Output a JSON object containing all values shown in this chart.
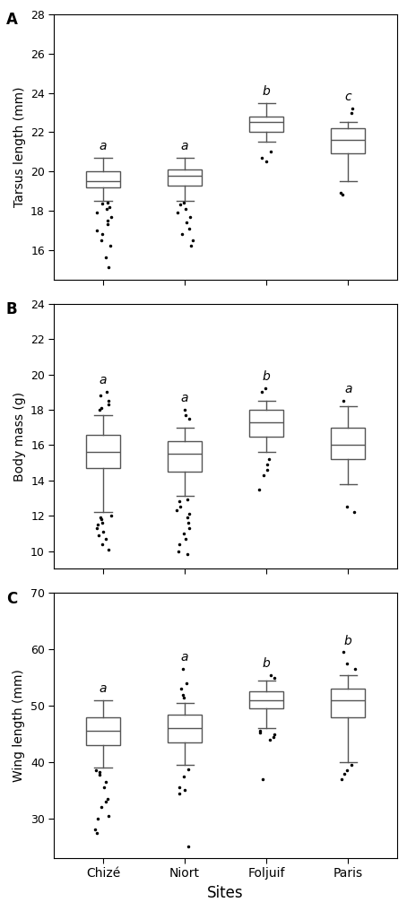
{
  "panel_A": {
    "label": "A",
    "ylabel": "Tarsus length (mm)",
    "ylim": [
      14.5,
      28
    ],
    "yticks": [
      16,
      18,
      20,
      22,
      24,
      26,
      28
    ],
    "sites": [
      "Chizé",
      "Niort",
      "Foljuif",
      "Paris"
    ],
    "sig_labels": [
      "a",
      "a",
      "b",
      "c"
    ],
    "boxes": [
      {
        "med": 19.5,
        "q1": 19.2,
        "q3": 20.0,
        "whislo": 18.5,
        "whishi": 20.7,
        "fliers": [
          18.4,
          18.35,
          18.2,
          18.1,
          17.9,
          17.7,
          17.5,
          17.3,
          17.0,
          16.8,
          16.5,
          16.2,
          15.6,
          15.1
        ]
      },
      {
        "med": 19.8,
        "q1": 19.3,
        "q3": 20.1,
        "whislo": 18.5,
        "whishi": 20.7,
        "fliers": [
          18.4,
          18.3,
          18.1,
          17.9,
          17.7,
          17.4,
          17.1,
          16.8,
          16.5,
          16.2
        ]
      },
      {
        "med": 22.5,
        "q1": 22.0,
        "q3": 22.8,
        "whislo": 21.5,
        "whishi": 23.5,
        "fliers": [
          21.0,
          20.7,
          20.5
        ]
      },
      {
        "med": 21.6,
        "q1": 20.9,
        "q3": 22.2,
        "whislo": 19.5,
        "whishi": 22.5,
        "fliers": [
          18.9,
          18.8,
          23.0,
          23.2
        ]
      }
    ]
  },
  "panel_B": {
    "label": "B",
    "ylabel": "Body mass (g)",
    "ylim": [
      9,
      24
    ],
    "yticks": [
      10,
      12,
      14,
      16,
      18,
      20,
      22,
      24
    ],
    "sites": [
      "Chizé",
      "Niort",
      "Foljuif",
      "Paris"
    ],
    "sig_labels": [
      "a",
      "a",
      "b",
      "a"
    ],
    "boxes": [
      {
        "med": 15.6,
        "q1": 14.7,
        "q3": 16.6,
        "whislo": 12.2,
        "whishi": 17.7,
        "fliers": [
          12.0,
          11.9,
          11.8,
          11.6,
          11.5,
          11.3,
          11.1,
          10.9,
          10.7,
          10.4,
          10.1,
          19.0,
          18.8,
          18.5,
          18.3,
          18.1,
          18.0
        ]
      },
      {
        "med": 15.5,
        "q1": 14.5,
        "q3": 16.2,
        "whislo": 13.1,
        "whishi": 17.0,
        "fliers": [
          12.9,
          12.8,
          12.5,
          12.3,
          12.1,
          11.9,
          11.6,
          11.3,
          11.0,
          10.7,
          10.4,
          10.0,
          9.8,
          18.0,
          17.7,
          17.5
        ]
      },
      {
        "med": 17.3,
        "q1": 16.5,
        "q3": 18.0,
        "whislo": 15.6,
        "whishi": 18.5,
        "fliers": [
          15.2,
          14.9,
          14.6,
          14.3,
          13.5,
          19.2,
          19.0
        ]
      },
      {
        "med": 16.0,
        "q1": 15.2,
        "q3": 17.0,
        "whislo": 13.8,
        "whishi": 18.2,
        "fliers": [
          12.5,
          12.2,
          18.5
        ]
      }
    ]
  },
  "panel_C": {
    "label": "C",
    "ylabel": "Wing length (mm)",
    "ylim": [
      23,
      70
    ],
    "yticks": [
      30,
      40,
      50,
      60,
      70
    ],
    "sites": [
      "Chizé",
      "Niort",
      "Foljuif",
      "Paris"
    ],
    "sig_labels": [
      "a",
      "a",
      "b",
      "b"
    ],
    "boxes": [
      {
        "med": 45.5,
        "q1": 43.0,
        "q3": 48.0,
        "whislo": 39.0,
        "whishi": 51.0,
        "fliers": [
          38.5,
          38.2,
          37.8,
          36.5,
          35.5,
          33.5,
          33.0,
          32.0,
          30.5,
          30.0,
          28.0,
          27.5
        ]
      },
      {
        "med": 46.0,
        "q1": 43.5,
        "q3": 48.5,
        "whislo": 39.5,
        "whishi": 50.5,
        "fliers": [
          38.8,
          37.5,
          35.5,
          35.0,
          34.5,
          25.0,
          51.5,
          52.0,
          53.0,
          54.0,
          56.5
        ]
      },
      {
        "med": 51.0,
        "q1": 49.5,
        "q3": 52.5,
        "whislo": 46.0,
        "whishi": 54.5,
        "fliers": [
          45.5,
          45.2,
          45.0,
          44.5,
          44.0,
          37.0,
          55.0,
          55.5
        ]
      },
      {
        "med": 51.0,
        "q1": 48.0,
        "q3": 53.0,
        "whislo": 40.0,
        "whishi": 55.5,
        "fliers": [
          39.5,
          38.5,
          38.0,
          37.0,
          56.5,
          57.5,
          59.5
        ]
      }
    ]
  },
  "xlabel": "Sites",
  "box_color": "white",
  "box_edge_color": "#555555",
  "median_color": "#555555",
  "whisker_color": "#555555",
  "flier_color": "black",
  "flier_size": 3.0,
  "box_width": 0.42
}
